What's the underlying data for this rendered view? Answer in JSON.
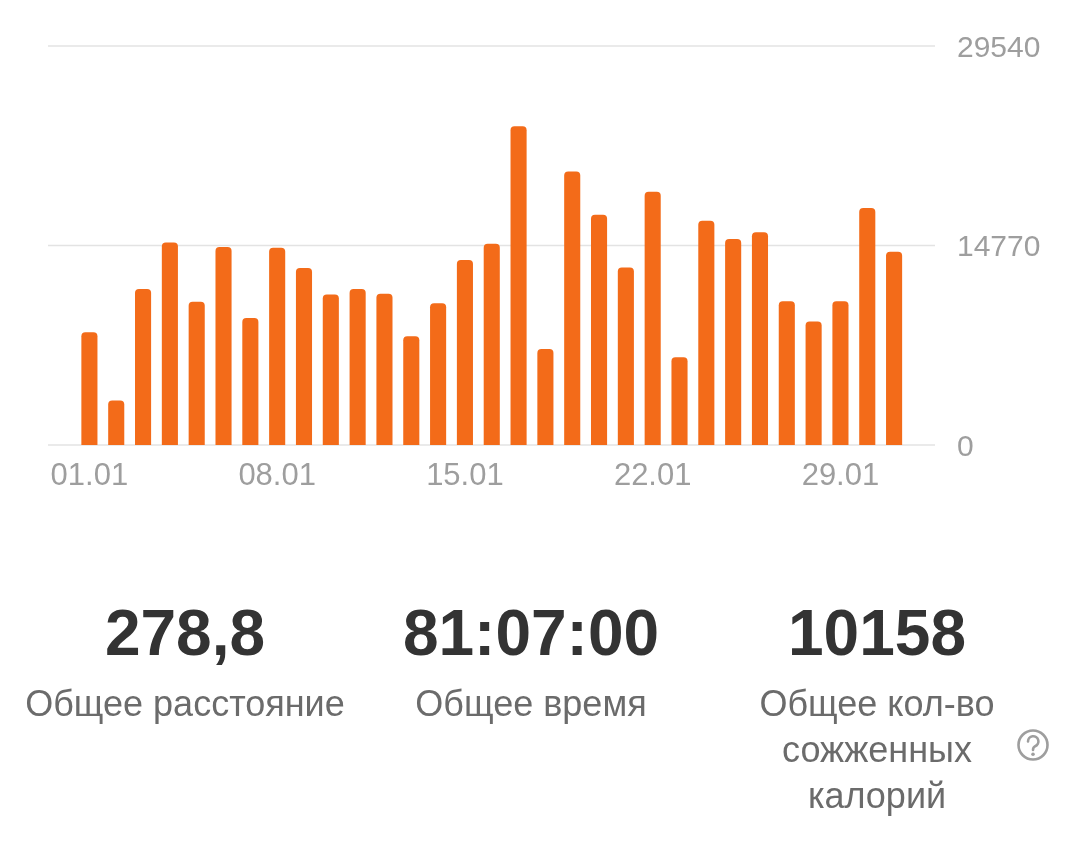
{
  "chart_data": [
    {
      "type": "bar",
      "categories": [
        "01.01",
        null,
        null,
        null,
        null,
        null,
        null,
        "08.01",
        null,
        null,
        null,
        null,
        null,
        null,
        "15.01",
        null,
        null,
        null,
        null,
        null,
        null,
        "22.01",
        null,
        null,
        null,
        null,
        null,
        null,
        "29.01",
        null,
        null
      ],
      "values": [
        8350,
        3300,
        11550,
        15000,
        10600,
        14650,
        9400,
        14600,
        13100,
        11150,
        11550,
        11200,
        8050,
        10500,
        13700,
        14900,
        23600,
        7100,
        20250,
        17050,
        13150,
        18750,
        6500,
        16600,
        15250,
        15750,
        10650,
        9150,
        10650,
        17550,
        14300
      ],
      "color": "#f36b19",
      "ylim": [
        0,
        29540
      ],
      "yticks": [
        0,
        14770,
        29540
      ],
      "grid": "y"
    },
    {
      "type": "other",
      "annotations": [
        "278,8",
        "Общее расстояние",
        "81:07:00",
        "Общее время",
        "10158",
        "Общее кол-во сожженных калорий"
      ]
    }
  ]
}
